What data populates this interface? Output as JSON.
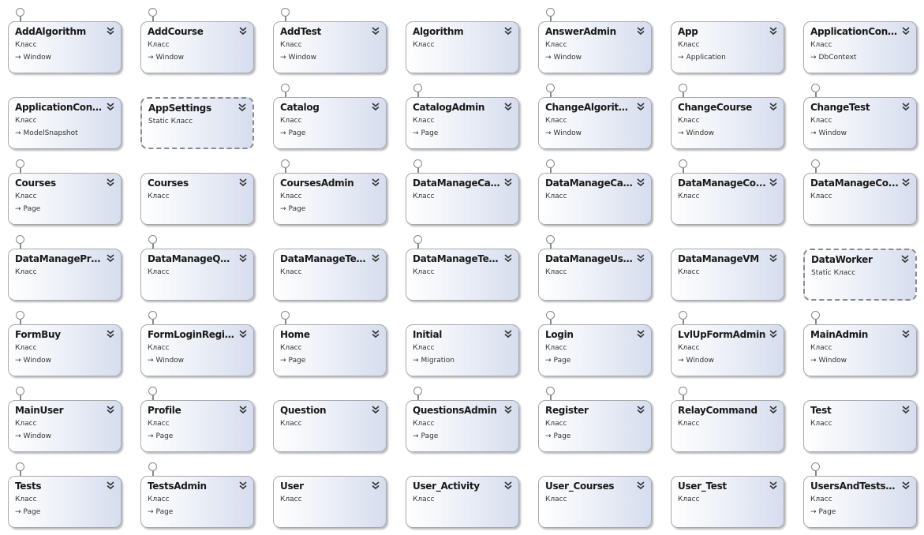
{
  "arrow_glyph": "→",
  "expand_icon": "double-chevron-down-icon",
  "colors": {
    "box_border": "#a7a9ad",
    "box_gradient_start": "#ffffff",
    "box_gradient_end": "#d6ddee",
    "static_border": "#8a8a8a",
    "text": "#1a1a1a"
  },
  "classes": [
    {
      "name": "AddAlgorithm",
      "stereotype": "Класс",
      "base": "Window",
      "interface": true,
      "static": false
    },
    {
      "name": "AddCourse",
      "stereotype": "Класс",
      "base": "Window",
      "interface": true,
      "static": false
    },
    {
      "name": "AddTest",
      "stereotype": "Класс",
      "base": "Window",
      "interface": true,
      "static": false
    },
    {
      "name": "Algorithm",
      "stereotype": "Класс",
      "base": null,
      "interface": false,
      "static": false
    },
    {
      "name": "AnswerAdmin",
      "stereotype": "Класс",
      "base": "Window",
      "interface": true,
      "static": false
    },
    {
      "name": "App",
      "stereotype": "Класс",
      "base": "Application",
      "interface": false,
      "static": false
    },
    {
      "name": "ApplicationCont...",
      "stereotype": "Класс",
      "base": "DbContext",
      "interface": false,
      "static": false
    },
    {
      "name": "ApplicationCont...",
      "stereotype": "Класс",
      "base": "ModelSnapshot",
      "interface": false,
      "static": false
    },
    {
      "name": "AppSettings",
      "stereotype": "Static Класс",
      "base": null,
      "interface": false,
      "static": true
    },
    {
      "name": "Catalog",
      "stereotype": "Класс",
      "base": "Page",
      "interface": true,
      "static": false
    },
    {
      "name": "CatalogAdmin",
      "stereotype": "Класс",
      "base": "Page",
      "interface": true,
      "static": false
    },
    {
      "name": "ChangeAlgorithm",
      "stereotype": "Класс",
      "base": "Window",
      "interface": true,
      "static": false
    },
    {
      "name": "ChangeCourse",
      "stereotype": "Класс",
      "base": "Window",
      "interface": true,
      "static": false
    },
    {
      "name": "ChangeTest",
      "stereotype": "Класс",
      "base": "Window",
      "interface": true,
      "static": false
    },
    {
      "name": "Courses",
      "stereotype": "Класс",
      "base": "Page",
      "interface": true,
      "static": false
    },
    {
      "name": "Courses",
      "stereotype": "Класс",
      "base": null,
      "interface": false,
      "static": false
    },
    {
      "name": "CoursesAdmin",
      "stereotype": "Класс",
      "base": "Page",
      "interface": true,
      "static": false
    },
    {
      "name": "DataManageCat...",
      "stereotype": "Класс",
      "base": null,
      "interface": true,
      "static": false
    },
    {
      "name": "DataManageCat...",
      "stereotype": "Класс",
      "base": null,
      "interface": true,
      "static": false
    },
    {
      "name": "DataManageCo...",
      "stereotype": "Класс",
      "base": null,
      "interface": true,
      "static": false
    },
    {
      "name": "DataManageCo...",
      "stereotype": "Класс",
      "base": null,
      "interface": true,
      "static": false
    },
    {
      "name": "DataManagePro...",
      "stereotype": "Класс",
      "base": null,
      "interface": true,
      "static": false
    },
    {
      "name": "DataManageQu...",
      "stereotype": "Класс",
      "base": null,
      "interface": true,
      "static": false
    },
    {
      "name": "DataManageTests",
      "stereotype": "Класс",
      "base": null,
      "interface": false,
      "static": false
    },
    {
      "name": "DataManageTes...",
      "stereotype": "Класс",
      "base": null,
      "interface": true,
      "static": false
    },
    {
      "name": "DataManageUse...",
      "stereotype": "Класс",
      "base": null,
      "interface": true,
      "static": false
    },
    {
      "name": "DataManageVM",
      "stereotype": "Класс",
      "base": null,
      "interface": false,
      "static": false
    },
    {
      "name": "DataWorker",
      "stereotype": "Static Класс",
      "base": null,
      "interface": false,
      "static": true
    },
    {
      "name": "FormBuy",
      "stereotype": "Класс",
      "base": "Window",
      "interface": true,
      "static": false
    },
    {
      "name": "FormLoginRegis...",
      "stereotype": "Класс",
      "base": "Window",
      "interface": true,
      "static": false
    },
    {
      "name": "Home",
      "stereotype": "Класс",
      "base": "Page",
      "interface": true,
      "static": false
    },
    {
      "name": "Initial",
      "stereotype": "Класс",
      "base": "Migration",
      "interface": false,
      "static": false
    },
    {
      "name": "Login",
      "stereotype": "Класс",
      "base": "Page",
      "interface": true,
      "static": false
    },
    {
      "name": "LvlUpFormAdmin",
      "stereotype": "Класс",
      "base": "Window",
      "interface": true,
      "static": false
    },
    {
      "name": "MainAdmin",
      "stereotype": "Класс",
      "base": "Window",
      "interface": true,
      "static": false
    },
    {
      "name": "MainUser",
      "stereotype": "Класс",
      "base": "Window",
      "interface": true,
      "static": false
    },
    {
      "name": "Profile",
      "stereotype": "Класс",
      "base": "Page",
      "interface": true,
      "static": false
    },
    {
      "name": "Question",
      "stereotype": "Класс",
      "base": null,
      "interface": false,
      "static": false
    },
    {
      "name": "QuestionsAdmin",
      "stereotype": "Класс",
      "base": "Page",
      "interface": true,
      "static": false
    },
    {
      "name": "Register",
      "stereotype": "Класс",
      "base": "Page",
      "interface": true,
      "static": false
    },
    {
      "name": "RelayCommand",
      "stereotype": "Класс",
      "base": null,
      "interface": true,
      "static": false
    },
    {
      "name": "Test",
      "stereotype": "Класс",
      "base": null,
      "interface": false,
      "static": false
    },
    {
      "name": "Tests",
      "stereotype": "Класс",
      "base": "Page",
      "interface": true,
      "static": false
    },
    {
      "name": "TestsAdmin",
      "stereotype": "Класс",
      "base": "Page",
      "interface": true,
      "static": false
    },
    {
      "name": "User",
      "stereotype": "Класс",
      "base": null,
      "interface": false,
      "static": false
    },
    {
      "name": "User_Activity",
      "stereotype": "Класс",
      "base": null,
      "interface": false,
      "static": false
    },
    {
      "name": "User_Courses",
      "stereotype": "Класс",
      "base": null,
      "interface": false,
      "static": false
    },
    {
      "name": "User_Test",
      "stereotype": "Класс",
      "base": null,
      "interface": false,
      "static": false
    },
    {
      "name": "UsersAndTestsA...",
      "stereotype": "Класс",
      "base": "Page",
      "interface": true,
      "static": false
    }
  ]
}
